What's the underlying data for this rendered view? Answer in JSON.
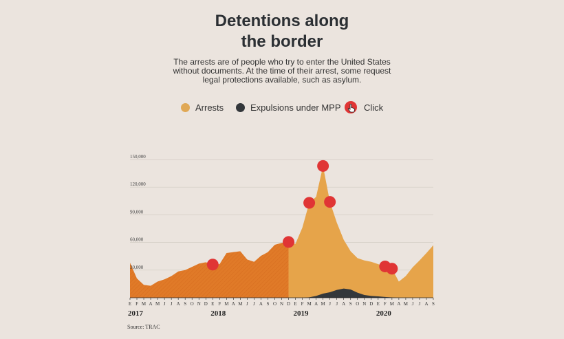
{
  "title_line1": "Detentions along",
  "title_line2": "the border",
  "subtitle": "The arrests are of people who try to enter the United States without documents. At the time of their arrest, some request legal protections available, such as asylum.",
  "legend": {
    "arrests": "Arrests",
    "expulsions": "Expulsions under MPP",
    "click": "Click"
  },
  "source": "Source:  TRAC",
  "colors": {
    "background": "#ebe4de",
    "arrests_highlight": "#e07a28",
    "arrests_light": "#e6a44a",
    "expulsions": "#33373b",
    "marker": "#e03535"
  },
  "chart_data": {
    "type": "area",
    "x": [
      "2017-01",
      "2017-02",
      "2017-03",
      "2017-04",
      "2017-05",
      "2017-06",
      "2017-07",
      "2017-08",
      "2017-09",
      "2017-10",
      "2017-11",
      "2017-12",
      "2018-01",
      "2018-02",
      "2018-03",
      "2018-04",
      "2018-05",
      "2018-06",
      "2018-07",
      "2018-08",
      "2018-09",
      "2018-10",
      "2018-11",
      "2018-12",
      "2019-01",
      "2019-02",
      "2019-03",
      "2019-04",
      "2019-05",
      "2019-06",
      "2019-07",
      "2019-08",
      "2019-09",
      "2019-10",
      "2019-11",
      "2019-12",
      "2020-01",
      "2020-02",
      "2020-03",
      "2020-04",
      "2020-05",
      "2020-06",
      "2020-07",
      "2020-08",
      "2020-09"
    ],
    "x_tick_labels": [
      "E",
      "F",
      "M",
      "A",
      "M",
      "J",
      "J",
      "A",
      "S",
      "O",
      "N",
      "D",
      "E",
      "F",
      "M",
      "A",
      "M",
      "J",
      "J",
      "A",
      "S",
      "O",
      "N",
      "D",
      "E",
      "F",
      "M",
      "A",
      "M",
      "J",
      "J",
      "A",
      "S",
      "O",
      "N",
      "D",
      "E",
      "F",
      "M",
      "A",
      "M",
      "J",
      "J",
      "A",
      "S"
    ],
    "year_labels": [
      "2017",
      "2018",
      "2019",
      "2020"
    ],
    "y_tick_labels": [
      "30,000",
      "60,000",
      "90,000",
      "120,000",
      "150,000"
    ],
    "ylim": [
      0,
      150000
    ],
    "grid": true,
    "series": [
      {
        "name": "Arrests",
        "values": [
          38000,
          21000,
          14000,
          13000,
          17500,
          20000,
          23500,
          28500,
          30000,
          33500,
          37000,
          38500,
          36000,
          36500,
          48500,
          49500,
          50500,
          41500,
          39000,
          45500,
          49500,
          57500,
          59500,
          60500,
          58500,
          76000,
          103000,
          109500,
          143000,
          104000,
          81500,
          63000,
          50500,
          43000,
          40500,
          39000,
          36500,
          34000,
          31500,
          17500,
          23500,
          33000,
          40500,
          48500,
          57000
        ]
      },
      {
        "name": "Expulsions under MPP",
        "values": [
          0,
          0,
          0,
          0,
          0,
          0,
          0,
          0,
          0,
          0,
          0,
          0,
          0,
          0,
          0,
          0,
          0,
          0,
          0,
          0,
          0,
          0,
          0,
          0,
          0,
          0,
          500,
          2000,
          4500,
          6000,
          8500,
          10000,
          9000,
          5500,
          3000,
          2000,
          1500,
          800,
          400,
          0,
          0,
          0,
          0,
          0,
          0
        ]
      }
    ],
    "highlight_range": [
      "2017-01",
      "2018-12"
    ],
    "click_markers": [
      "2018-01",
      "2018-12",
      "2019-03",
      "2019-05",
      "2019-06",
      "2020-02",
      "2020-03"
    ]
  }
}
